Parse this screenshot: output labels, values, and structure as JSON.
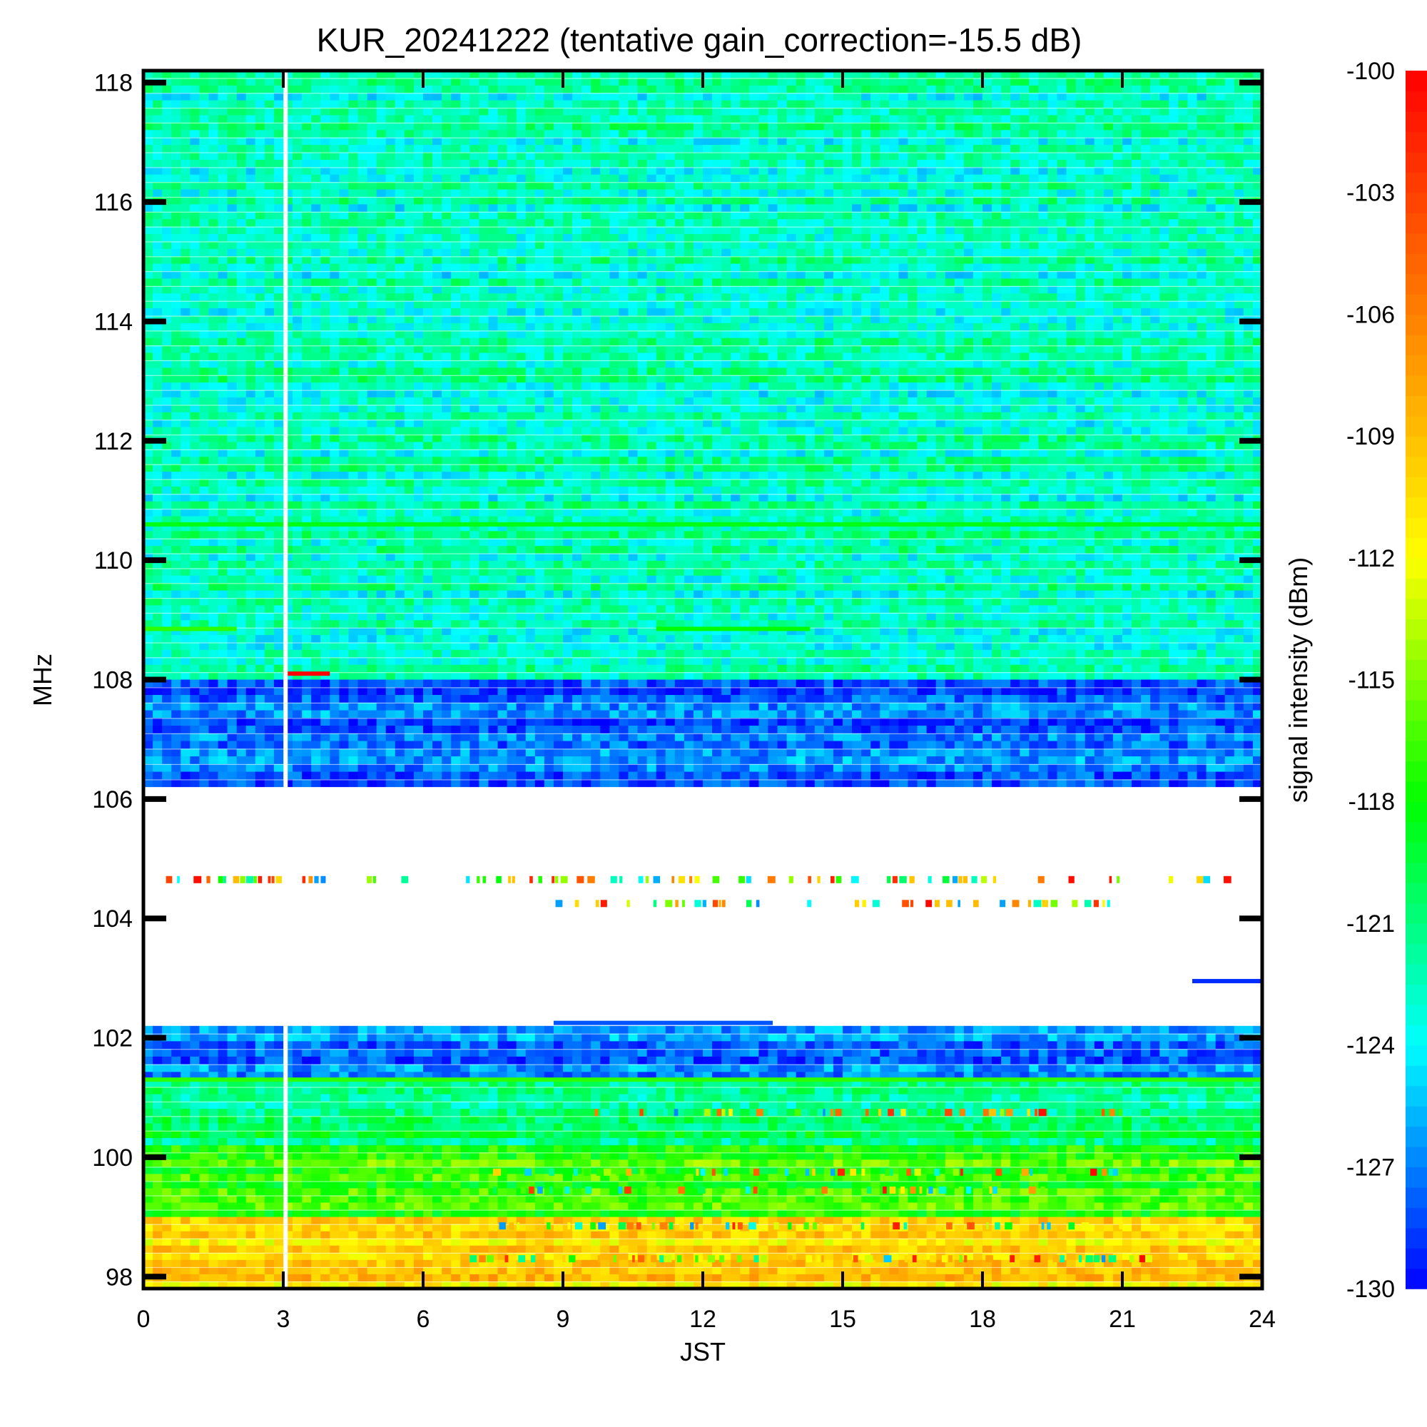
{
  "chart_data": {
    "type": "heatmap",
    "title": "KUR_20241222 (tentative gain_correction=-15.5 dB)",
    "xlabel": "JST",
    "ylabel": "MHz",
    "xlim": [
      0,
      24
    ],
    "ylim": [
      97.8,
      118.2
    ],
    "x_ticks": [
      "0",
      "3",
      "6",
      "9",
      "12",
      "15",
      "18",
      "21",
      "24"
    ],
    "y_ticks": [
      "98",
      "100",
      "102",
      "104",
      "106",
      "108",
      "110",
      "112",
      "114",
      "116",
      "118"
    ],
    "colorbar": {
      "label": "signal intensity (dBm)",
      "range": [
        -130,
        -100
      ],
      "ticks": [
        "-100",
        "-103",
        "-106",
        "-109",
        "-112",
        "-115",
        "-118",
        "-121",
        "-124",
        "-127",
        "-130"
      ],
      "colors": [
        "#0000ff",
        "#00ffff",
        "#00ff00",
        "#ffff00",
        "#ff8000",
        "#ff0000"
      ]
    },
    "bands": [
      {
        "freq_from": 108.0,
        "freq_to": 118.2,
        "level_dbm": -122.5
      },
      {
        "freq_from": 106.2,
        "freq_to": 108.0,
        "level_dbm": -127.5
      },
      {
        "freq_from": 102.2,
        "freq_to": 106.2,
        "level_dbm": null
      },
      {
        "freq_from": 101.3,
        "freq_to": 102.2,
        "level_dbm": -127.0
      },
      {
        "freq_from": 100.2,
        "freq_to": 101.3,
        "level_dbm": -120.5
      },
      {
        "freq_from": 99.0,
        "freq_to": 100.2,
        "level_dbm": -117.0
      },
      {
        "freq_from": 97.8,
        "freq_to": 99.0,
        "level_dbm": -110.0
      }
    ],
    "line_features": [
      {
        "freq": 110.6,
        "from": 0,
        "to": 24,
        "level_dbm": -118.5
      },
      {
        "freq": 108.85,
        "from": 0,
        "to": 2,
        "level_dbm": -117
      },
      {
        "freq": 108.85,
        "from": 11,
        "to": 14.3,
        "level_dbm": -118
      },
      {
        "freq": 108.1,
        "from": 3.0,
        "to": 4.0,
        "level_dbm": -100
      },
      {
        "freq": 101.3,
        "from": 0,
        "to": 24,
        "level_dbm": -117
      },
      {
        "freq": 102.95,
        "from": 22.5,
        "to": 24,
        "level_dbm": -129
      },
      {
        "freq": 102.25,
        "from": 8.8,
        "to": 13.5,
        "level_dbm": -128
      }
    ],
    "gaps": [
      {
        "time": 3.05
      }
    ],
    "intermittent_rows": [
      {
        "freq": 104.65,
        "from": 0.3,
        "to": 24
      },
      {
        "freq": 104.25,
        "from": 7.8,
        "to": 21
      },
      {
        "freq": 100.75,
        "from": 8,
        "to": 21
      },
      {
        "freq": 99.75,
        "from": 7.5,
        "to": 21
      },
      {
        "freq": 99.45,
        "from": 7.5,
        "to": 21
      },
      {
        "freq": 98.85,
        "from": 7.5,
        "to": 21
      },
      {
        "freq": 98.3,
        "from": 7,
        "to": 22
      }
    ]
  }
}
